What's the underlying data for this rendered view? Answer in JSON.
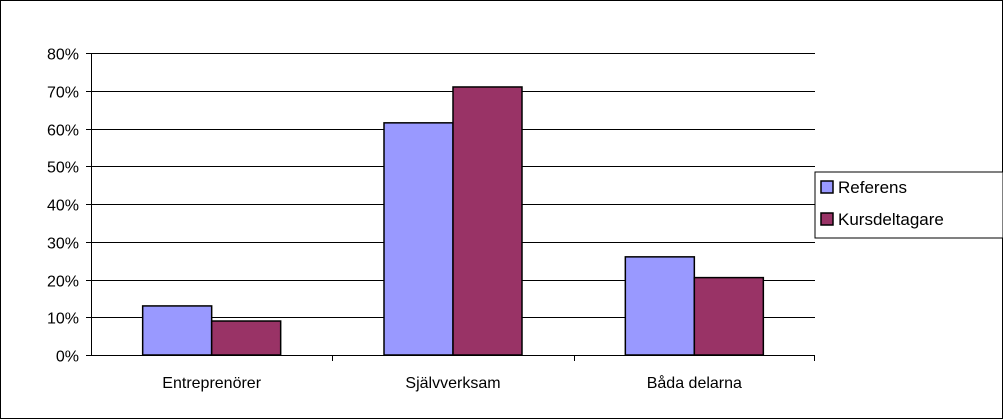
{
  "chart_data": {
    "type": "bar",
    "categories": [
      "Entreprenörer",
      "Självverksam",
      "Båda delarna"
    ],
    "series": [
      {
        "name": "Referens",
        "values": [
          13,
          61.5,
          26
        ],
        "color": "#9999ff"
      },
      {
        "name": "Kursdeltagare",
        "values": [
          9,
          71,
          20.5
        ],
        "color": "#993366"
      }
    ],
    "ylim": [
      0,
      80
    ],
    "yticks": [
      "0%",
      "10%",
      "20%",
      "30%",
      "40%",
      "50%",
      "60%",
      "70%",
      "80%"
    ],
    "title": "",
    "xlabel": "",
    "ylabel": "",
    "grid": true,
    "legend_position": "right",
    "plot_background": "#ffffff",
    "gridline_color": "#000000"
  }
}
